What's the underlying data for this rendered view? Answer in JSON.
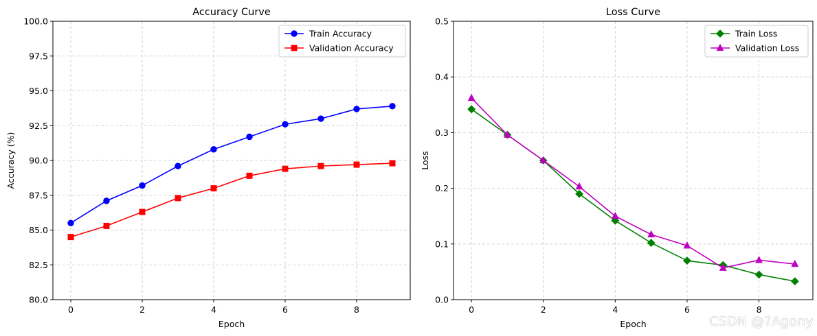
{
  "chart_data": [
    {
      "type": "line",
      "title": "Accuracy Curve",
      "xlabel": "Epoch",
      "ylabel": "Accuracy (%)",
      "x": [
        0,
        1,
        2,
        3,
        4,
        5,
        6,
        7,
        8,
        9
      ],
      "xlim": [
        -0.5,
        9.5
      ],
      "ylim": [
        80,
        100
      ],
      "xticks": [
        0,
        2,
        4,
        6,
        8
      ],
      "xtick_labels": [
        "0",
        "2",
        "4",
        "6",
        "8"
      ],
      "yticks": [
        80,
        82.5,
        85,
        87.5,
        90,
        92.5,
        95,
        97.5,
        100
      ],
      "ytick_labels": [
        "80.0",
        "82.5",
        "85.0",
        "87.5",
        "90.0",
        "92.5",
        "95.0",
        "97.5",
        "100.0"
      ],
      "grid": true,
      "legend_position": "top-right",
      "series": [
        {
          "name": "Train Accuracy",
          "color": "#0000ff",
          "marker": "circle",
          "values": [
            85.5,
            87.1,
            88.2,
            89.6,
            90.8,
            91.7,
            92.6,
            93.0,
            93.7,
            93.9
          ]
        },
        {
          "name": "Validation Accuracy",
          "color": "#ff0000",
          "marker": "square",
          "values": [
            84.5,
            85.3,
            86.3,
            87.3,
            88.0,
            88.9,
            89.4,
            89.6,
            89.7,
            89.8
          ]
        }
      ]
    },
    {
      "type": "line",
      "title": "Loss Curve",
      "xlabel": "Epoch",
      "ylabel": "Loss",
      "x": [
        0,
        1,
        2,
        3,
        4,
        5,
        6,
        7,
        8,
        9
      ],
      "xlim": [
        -0.5,
        9.5
      ],
      "ylim": [
        0,
        0.5
      ],
      "xticks": [
        0,
        2,
        4,
        6,
        8
      ],
      "xtick_labels": [
        "0",
        "2",
        "4",
        "6",
        "8"
      ],
      "yticks": [
        0,
        0.1,
        0.2,
        0.3,
        0.4,
        0.5
      ],
      "ytick_labels": [
        "0.0",
        "0.1",
        "0.2",
        "0.3",
        "0.4",
        "0.5"
      ],
      "grid": true,
      "legend_position": "top-right",
      "series": [
        {
          "name": "Train Loss",
          "color": "#008000",
          "marker": "diamond",
          "values": [
            0.342,
            0.296,
            0.25,
            0.19,
            0.142,
            0.102,
            0.07,
            0.062,
            0.045,
            0.033
          ]
        },
        {
          "name": "Validation Loss",
          "color": "#bf00bf",
          "marker": "triangle",
          "values": [
            0.362,
            0.296,
            0.25,
            0.203,
            0.15,
            0.117,
            0.097,
            0.057,
            0.071,
            0.064
          ]
        }
      ]
    }
  ],
  "watermark": "CSDN @?Agony"
}
